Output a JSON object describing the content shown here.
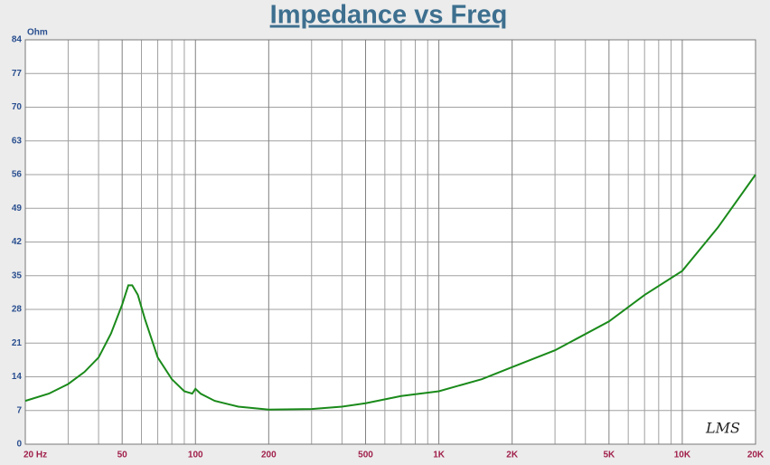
{
  "chart_data": {
    "type": "line",
    "title": "Impedance vs Freq",
    "ylabel": "Ohm",
    "watermark": "LMS",
    "xscale": "log",
    "xlim": [
      20,
      20000
    ],
    "ylim": [
      0,
      84
    ],
    "xticks": [
      {
        "value": 20,
        "label": "20 Hz"
      },
      50,
      100,
      200,
      500,
      {
        "value": 1000,
        "label": "1K"
      },
      {
        "value": 2000,
        "label": "2K"
      },
      {
        "value": 5000,
        "label": "5K"
      },
      {
        "value": 10000,
        "label": "10K"
      },
      {
        "value": 20000,
        "label": "20K"
      }
    ],
    "xgrid": [
      30,
      40,
      60,
      70,
      80,
      90,
      300,
      400,
      600,
      700,
      800,
      900,
      3000,
      4000,
      6000,
      7000,
      8000,
      9000
    ],
    "yticks": [
      0,
      7,
      14,
      21,
      28,
      35,
      42,
      49,
      56,
      63,
      70,
      77,
      84
    ],
    "grid": true,
    "series": [
      {
        "name": "Impedance",
        "color": "#1a8a1a",
        "x": [
          20,
          25,
          30,
          35,
          40,
          45,
          50,
          53,
          55,
          58,
          62,
          70,
          80,
          90,
          97,
          100,
          105,
          120,
          150,
          200,
          300,
          400,
          500,
          700,
          1000,
          1500,
          2000,
          3000,
          5000,
          7000,
          10000,
          14000,
          20000
        ],
        "values": [
          9,
          10.5,
          12.5,
          15,
          18,
          23,
          29,
          33,
          33,
          31,
          26,
          18,
          13.5,
          11,
          10.5,
          11.5,
          10.5,
          9,
          7.8,
          7.2,
          7.3,
          7.8,
          8.5,
          10,
          11,
          13.5,
          16,
          19.5,
          25.5,
          31,
          36,
          45,
          56
        ]
      }
    ]
  }
}
